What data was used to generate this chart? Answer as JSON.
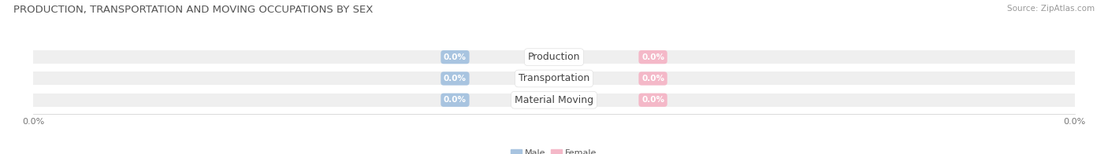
{
  "title": "PRODUCTION, TRANSPORTATION AND MOVING OCCUPATIONS BY SEX",
  "source": "Source: ZipAtlas.com",
  "categories": [
    "Production",
    "Transportation",
    "Material Moving"
  ],
  "male_values": [
    0.0,
    0.0,
    0.0
  ],
  "female_values": [
    0.0,
    0.0,
    0.0
  ],
  "male_color": "#a8c4e0",
  "female_color": "#f4b8c8",
  "male_label": "Male",
  "female_label": "Female",
  "bar_bg_color": "#efefef",
  "bar_height": 0.62,
  "title_fontsize": 9.5,
  "source_fontsize": 7.5,
  "legend_fontsize": 8,
  "tick_fontsize": 8,
  "category_fontsize": 9,
  "value_fontsize": 7.5,
  "axis_label_left": "0.0%",
  "axis_label_right": "0.0%",
  "bg_color": "#ffffff",
  "separator_color": "#ffffff",
  "title_color": "#555555",
  "source_color": "#999999",
  "tick_color": "#777777"
}
